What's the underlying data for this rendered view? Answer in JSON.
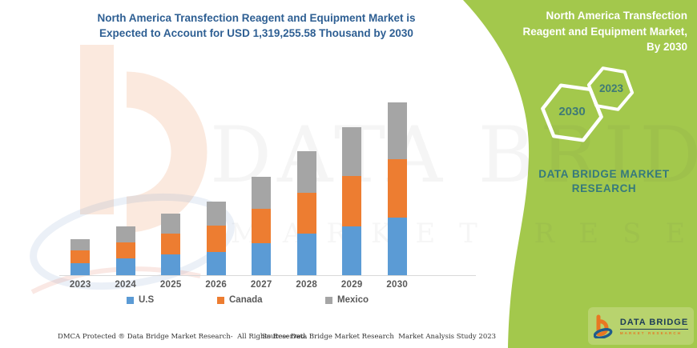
{
  "colors": {
    "green_bg": "#A3C84C",
    "green_light": "#B8D36E",
    "us_blue": "#5B9BD5",
    "canada_orange": "#ED7D31",
    "mexico_gray": "#A5A5A5",
    "chart_title_blue": "#2E5F93",
    "axis_text_gray": "#595959",
    "brand_teal": "#35797C",
    "hex_text_teal": "#3F7A76",
    "logo_navy": "#1C3B57",
    "logo_orange": "#E87722"
  },
  "chart": {
    "title_lines": [
      "North America Transfection Reagent and Equipment Market is",
      "Expected to Account for USD 1,319,255.58 Thousand by 2030"
    ],
    "footer_left": "DMCA Protected ® Data Bridge Market Research-  All Rights Reserved.",
    "footer_source": "Source: Data Bridge Market Research  Market Analysis Study 2023"
  },
  "chart_data": {
    "type": "bar",
    "stacked": true,
    "title": "North America Transfection Reagent and Equipment Market is Expected to Account for USD 1,319,255.58 Thousand by 2030",
    "unit": "USD Thousand",
    "categories": [
      "2023",
      "2024",
      "2025",
      "2026",
      "2027",
      "2028",
      "2029",
      "2030"
    ],
    "series": [
      {
        "name": "U.S",
        "color": "#5B9BD5",
        "values": [
          94600,
          128100,
          158000,
          180000,
          245300,
          316100,
          373400,
          438100
        ]
      },
      {
        "name": "Canada",
        "color": "#ED7D31",
        "values": [
          97600,
          125100,
          160000,
          197100,
          259900,
          311200,
          386300,
          447900
        ]
      },
      {
        "name": "Mexico",
        "color": "#A5A5A5",
        "values": [
          83600,
          122000,
          150000,
          185500,
          246500,
          319700,
          370400,
          433255.58
        ]
      }
    ],
    "totals_estimated": [
      275800,
      375200,
      468000,
      562600,
      751700,
      947000,
      1130100,
      1319255.58
    ],
    "stated_total_2030": 1319255.58,
    "xlabel": "",
    "ylabel": "",
    "y_axis_shown": false,
    "gridlines": false,
    "legend_position": "bottom",
    "legend_labels": [
      "U.S",
      "Canada",
      "Mexico"
    ]
  },
  "panel": {
    "title_lines": [
      "North America Transfection",
      "Reagent and Equipment Market,",
      "By 2030"
    ],
    "hexagons": [
      {
        "label": "2030"
      },
      {
        "label": "2023"
      }
    ],
    "brand_lines": [
      "DATA BRIDGE MARKET",
      "RESEARCH"
    ],
    "logo": {
      "name": "DATA BRIDGE",
      "sub": "MARKET RESEARCH"
    }
  },
  "watermark": {
    "big": "DATA BRIDGE",
    "sub": "MARKET RESEARCH"
  }
}
